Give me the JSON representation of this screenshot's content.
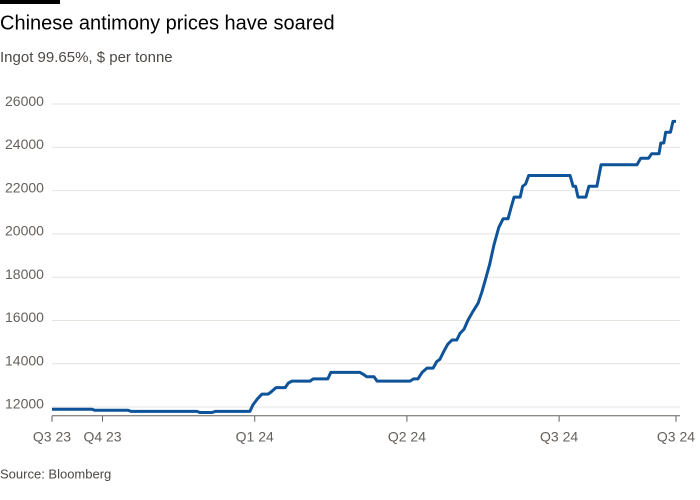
{
  "chart_data": {
    "type": "line",
    "title": "Chinese antimony prices have soared",
    "subtitle": "Ingot 99.65%, $ per tonne",
    "source": "Source: Bloomberg",
    "x": [
      2023.667,
      2023.733,
      2023.737,
      2023.792,
      2023.797,
      2023.905,
      2023.91,
      2023.93,
      2023.935,
      2023.992,
      2023.997,
      2024.005,
      2024.012,
      2024.022,
      2024.027,
      2024.035,
      2024.05,
      2024.055,
      2024.061,
      2024.091,
      2024.096,
      2024.12,
      2024.125,
      2024.173,
      2024.179,
      2024.184,
      2024.196,
      2024.201,
      2024.255,
      2024.261,
      2024.268,
      2024.275,
      2024.283,
      2024.293,
      2024.299,
      2024.304,
      2024.311,
      2024.317,
      2024.324,
      2024.332,
      2024.337,
      2024.344,
      2024.35,
      2024.358,
      2024.367,
      2024.373,
      2024.38,
      2024.386,
      2024.393,
      2024.401,
      2024.408,
      2024.416,
      2024.421,
      2024.426,
      2024.436,
      2024.44,
      2024.445,
      2024.45,
      2024.518,
      2024.523,
      2024.527,
      2024.531,
      2024.544,
      2024.549,
      2024.562,
      2024.569,
      2024.628,
      2024.634,
      2024.647,
      2024.652,
      2024.664,
      2024.667,
      2024.672,
      2024.675,
      2024.683,
      2024.687,
      2024.692
    ],
    "series": [
      {
        "name": "Ingot 99.65%",
        "color": "#0f5499",
        "values": [
          11900,
          11900,
          11850,
          11850,
          11800,
          11800,
          11750,
          11750,
          11800,
          11800,
          12100,
          12400,
          12600,
          12600,
          12700,
          12900,
          12900,
          13100,
          13200,
          13200,
          13300,
          13300,
          13600,
          13600,
          13500,
          13400,
          13400,
          13200,
          13200,
          13300,
          13300,
          13600,
          13800,
          13800,
          14100,
          14200,
          14600,
          14900,
          15100,
          15100,
          15400,
          15600,
          16000,
          16400,
          16800,
          17300,
          18000,
          18600,
          19500,
          20300,
          20700,
          20700,
          21200,
          21700,
          21700,
          22200,
          22300,
          22700,
          22700,
          22200,
          22200,
          21700,
          21700,
          22200,
          22200,
          23200,
          23200,
          23500,
          23500,
          23700,
          23700,
          24200,
          24200,
          24700,
          24700,
          25200,
          25200
        ]
      }
    ],
    "xlim": [
      2023.667,
      2024.692
    ],
    "xticks": [
      {
        "value": 2023.667,
        "label": "Q3 23"
      },
      {
        "value": 2023.75,
        "label": "Q4 23"
      },
      {
        "value": 2024.0,
        "label": "Q1 24"
      },
      {
        "value": 2024.25,
        "label": "Q2 24"
      },
      {
        "value": 2024.5,
        "label": "Q3 24"
      },
      {
        "value": 2024.692,
        "label": "Q3 24"
      }
    ],
    "ylim": [
      11600,
      26400
    ],
    "yticks": [
      12000,
      14000,
      16000,
      18000,
      20000,
      22000,
      24000,
      26000
    ],
    "grid": true
  }
}
